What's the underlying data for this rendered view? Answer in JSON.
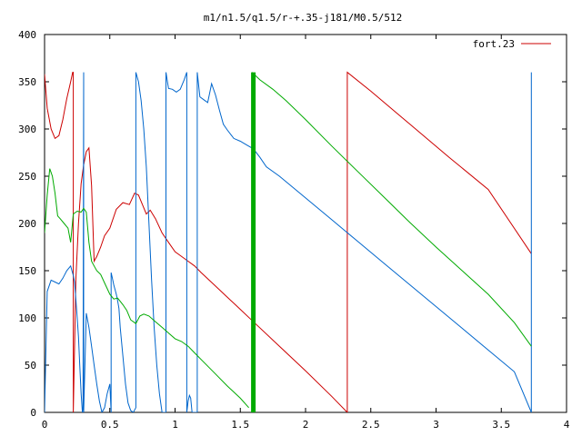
{
  "chart_data": {
    "type": "line",
    "title": "m1/n1.5/q1.5/r-+.35-j181/M0.5/512",
    "xlim": [
      0,
      4
    ],
    "ylim": [
      0,
      400
    ],
    "xticks": [
      0,
      0.5,
      1,
      1.5,
      2,
      2.5,
      3,
      3.5,
      4
    ],
    "xtick_labels": [
      "0",
      "0.5",
      "1",
      "1.5",
      "2",
      "2.5",
      "3",
      "3.5",
      "4"
    ],
    "yticks": [
      0,
      50,
      100,
      150,
      200,
      250,
      300,
      350,
      400
    ],
    "ytick_labels": [
      "0",
      "50",
      "100",
      "150",
      "200",
      "250",
      "300",
      "350",
      "400"
    ],
    "grid": false,
    "legend_position": "top-right",
    "legend": [
      {
        "label": "fort.23",
        "color": "#cc0000"
      }
    ],
    "series": [
      {
        "name": "fort.23",
        "color": "#cc0000",
        "x": [
          0.0,
          0.02,
          0.05,
          0.08,
          0.11,
          0.14,
          0.17,
          0.2,
          0.215,
          0.22,
          0.22,
          0.24,
          0.26,
          0.28,
          0.3,
          0.32,
          0.34,
          0.36,
          0.38,
          0.4,
          0.43,
          0.46,
          0.5,
          0.55,
          0.6,
          0.65,
          0.69,
          0.72,
          0.75,
          0.78,
          0.81,
          0.85,
          0.9,
          0.95,
          1.0,
          1.05,
          1.1,
          1.15,
          1.2,
          1.3,
          1.4,
          1.5,
          1.6,
          1.8,
          2.0,
          2.2,
          2.32,
          2.32,
          2.5,
          2.8,
          3.1,
          3.4,
          3.73
        ],
        "y": [
          358,
          322,
          300,
          290,
          293,
          310,
          332,
          350,
          360,
          360,
          0,
          140,
          200,
          242,
          262,
          276,
          280,
          240,
          160,
          165,
          175,
          187,
          195,
          215,
          222,
          220,
          232,
          230,
          220,
          210,
          214,
          205,
          190,
          180,
          170,
          165,
          160,
          155,
          148,
          135,
          122,
          109,
          96,
          70,
          44,
          17,
          0,
          360,
          340,
          305,
          270,
          236,
          168
        ]
      },
      {
        "name": "",
        "color": "#0066cc",
        "x": [
          0.0,
          0.02,
          0.05,
          0.08,
          0.11,
          0.14,
          0.17,
          0.2,
          0.21,
          0.22,
          0.23,
          0.24,
          0.25,
          0.26,
          0.27,
          0.28,
          0.29,
          0.295,
          0.3,
          0.3,
          0.32,
          0.34,
          0.36,
          0.38,
          0.4,
          0.42,
          0.44,
          0.46,
          0.48,
          0.5,
          0.51,
          0.51,
          0.52,
          0.53,
          0.54,
          0.55,
          0.56,
          0.57,
          0.58,
          0.6,
          0.62,
          0.64,
          0.66,
          0.68,
          0.7,
          0.7,
          0.72,
          0.74,
          0.76,
          0.78,
          0.8,
          0.82,
          0.84,
          0.86,
          0.88,
          0.9,
          0.93,
          0.93,
          0.95,
          0.98,
          1.01,
          1.04,
          1.07,
          1.09,
          1.09,
          1.1,
          1.11,
          1.12,
          1.13,
          1.14,
          1.17,
          1.17,
          1.19,
          1.22,
          1.25,
          1.28,
          1.31,
          1.34,
          1.37,
          1.4,
          1.45,
          1.5,
          1.55,
          1.6,
          1.65,
          1.7,
          1.8,
          2.0,
          2.2,
          2.4,
          2.6,
          2.8,
          3.0,
          3.2,
          3.4,
          3.6,
          3.73,
          3.73,
          3.73
        ],
        "y": [
          0,
          128,
          140,
          138,
          136,
          142,
          150,
          155,
          150,
          145,
          138,
          120,
          100,
          80,
          50,
          20,
          0,
          5,
          360,
          0,
          105,
          90,
          70,
          50,
          30,
          12,
          0,
          5,
          20,
          30,
          0,
          148,
          142,
          135,
          130,
          125,
          118,
          110,
          90,
          60,
          30,
          10,
          2,
          0,
          5,
          360,
          350,
          330,
          300,
          260,
          200,
          140,
          90,
          50,
          20,
          0,
          0,
          360,
          343,
          342,
          339,
          342,
          352,
          360,
          0,
          12,
          18,
          15,
          0,
          0,
          0,
          360,
          334,
          331,
          328,
          348,
          336,
          320,
          305,
          299,
          290,
          287,
          283,
          279,
          270,
          260,
          250,
          227,
          204,
          181,
          158,
          135,
          112,
          89,
          66,
          43,
          0,
          360,
          0
        ]
      },
      {
        "name": "",
        "color": "#00aa00",
        "x": [
          0.0,
          0.02,
          0.04,
          0.06,
          0.08,
          0.1,
          0.12,
          0.15,
          0.18,
          0.2,
          0.22,
          0.25,
          0.28,
          0.3,
          0.32,
          0.34,
          0.36,
          0.38,
          0.4,
          0.43,
          0.46,
          0.5,
          0.53,
          0.56,
          0.6,
          0.63,
          0.66,
          0.7,
          0.73,
          0.76,
          0.8,
          0.85,
          0.9,
          0.95,
          1.0,
          1.05,
          1.1,
          1.15,
          1.2,
          1.3,
          1.4,
          1.5,
          1.565
        ],
        "y": [
          190,
          230,
          258,
          250,
          232,
          208,
          205,
          200,
          195,
          180,
          210,
          213,
          212,
          216,
          212,
          180,
          160,
          155,
          150,
          146,
          137,
          125,
          120,
          121,
          114,
          108,
          98,
          94,
          102,
          104,
          102,
          96,
          90,
          84,
          78,
          75,
          70,
          63,
          56,
          42,
          28,
          15,
          5
        ]
      },
      {
        "name": "",
        "color": "#00aa00",
        "x": [
          1.59,
          1.65,
          1.75,
          1.85,
          2.0,
          2.2,
          2.4,
          2.6,
          2.8,
          3.0,
          3.2,
          3.4,
          3.6,
          3.73
        ],
        "y": [
          360,
          352,
          342,
          330,
          310,
          282,
          255,
          228,
          201,
          175,
          150,
          125,
          95,
          70
        ]
      }
    ],
    "thick_bar": {
      "color": "#00aa00",
      "x": 1.6,
      "y_from": 0,
      "y_to": 360
    }
  }
}
